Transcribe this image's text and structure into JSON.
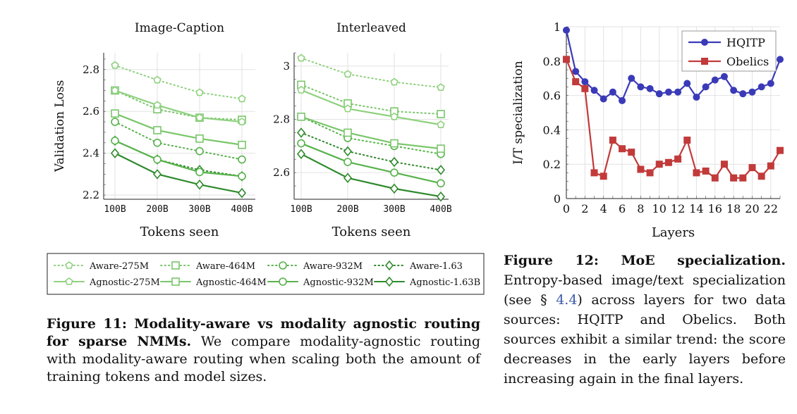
{
  "chart_data": [
    {
      "type": "line",
      "title": "Image-Caption",
      "xlabel": "Tokens seen",
      "ylabel": "Validation Loss",
      "categories": [
        "100B",
        "200B",
        "300B",
        "400B"
      ],
      "ylim": [
        2.18,
        2.88
      ],
      "yticks": [
        "2.2",
        "2.4",
        "2.6",
        "2.8"
      ],
      "ytick_values": [
        2.2,
        2.4,
        2.6,
        2.8
      ],
      "grid": true,
      "series": [
        {
          "name": "Aware-275M",
          "values": [
            2.82,
            2.75,
            2.69,
            2.66
          ]
        },
        {
          "name": "Aware-464M",
          "values": [
            2.7,
            2.61,
            2.57,
            2.56
          ]
        },
        {
          "name": "Aware-932M",
          "values": [
            2.55,
            2.45,
            2.41,
            2.37
          ]
        },
        {
          "name": "Aware-1.63",
          "values": [
            2.46,
            2.37,
            2.32,
            2.29
          ]
        },
        {
          "name": "Agnostic-275M",
          "values": [
            2.7,
            2.63,
            2.57,
            2.55
          ]
        },
        {
          "name": "Agnostic-464M",
          "values": [
            2.59,
            2.51,
            2.47,
            2.44
          ]
        },
        {
          "name": "Agnostic-932M",
          "values": [
            2.46,
            2.37,
            2.31,
            2.29
          ]
        },
        {
          "name": "Agnostic-1.63B",
          "values": [
            2.4,
            2.3,
            2.25,
            2.21
          ]
        }
      ]
    },
    {
      "type": "line",
      "title": "Interleaved",
      "xlabel": "Tokens seen",
      "ylabel": "",
      "categories": [
        "100B",
        "200B",
        "300B",
        "400B"
      ],
      "ylim": [
        2.5,
        3.05
      ],
      "yticks": [
        "2.6",
        "2.8",
        "3"
      ],
      "ytick_values": [
        2.6,
        2.8,
        3.0
      ],
      "grid": true,
      "series": [
        {
          "name": "Aware-275M",
          "values": [
            3.03,
            2.97,
            2.94,
            2.92
          ]
        },
        {
          "name": "Aware-464M",
          "values": [
            2.93,
            2.86,
            2.83,
            2.82
          ]
        },
        {
          "name": "Aware-932M",
          "values": [
            2.81,
            2.73,
            2.7,
            2.67
          ]
        },
        {
          "name": "Aware-1.63",
          "values": [
            2.75,
            2.68,
            2.64,
            2.61
          ]
        },
        {
          "name": "Agnostic-275M",
          "values": [
            2.91,
            2.84,
            2.81,
            2.78
          ]
        },
        {
          "name": "Agnostic-464M",
          "values": [
            2.81,
            2.75,
            2.71,
            2.69
          ]
        },
        {
          "name": "Agnostic-932M",
          "values": [
            2.71,
            2.64,
            2.6,
            2.56
          ]
        },
        {
          "name": "Agnostic-1.63B",
          "values": [
            2.67,
            2.58,
            2.54,
            2.51
          ]
        }
      ]
    },
    {
      "type": "line",
      "title": "",
      "xlabel": "Layers",
      "ylabel": "I/T specialization",
      "x": [
        0,
        1,
        2,
        3,
        4,
        5,
        6,
        7,
        8,
        9,
        10,
        11,
        12,
        13,
        14,
        15,
        16,
        17,
        18,
        19,
        20,
        21,
        22,
        23
      ],
      "xticks": [
        "0",
        "2",
        "4",
        "6",
        "8",
        "10",
        "12",
        "14",
        "16",
        "18",
        "20",
        "22"
      ],
      "xtick_values": [
        0,
        2,
        4,
        6,
        8,
        10,
        12,
        14,
        16,
        18,
        20,
        22
      ],
      "xlim": [
        0,
        23
      ],
      "ylim": [
        0,
        1
      ],
      "yticks": [
        "0",
        "0.2",
        "0.4",
        "0.6",
        "0.8",
        "1"
      ],
      "ytick_values": [
        0,
        0.2,
        0.4,
        0.6,
        0.8,
        1.0
      ],
      "grid": true,
      "legend_position": "top-right",
      "series": [
        {
          "name": "HQITP",
          "color": "#3a3ab8",
          "values": [
            0.98,
            0.74,
            0.68,
            0.63,
            0.58,
            0.62,
            0.57,
            0.7,
            0.65,
            0.64,
            0.61,
            0.62,
            0.62,
            0.67,
            0.59,
            0.65,
            0.69,
            0.71,
            0.63,
            0.61,
            0.62,
            0.65,
            0.67,
            0.81
          ]
        },
        {
          "name": "Obelics",
          "color": "#c23a3a",
          "values": [
            0.81,
            0.68,
            0.64,
            0.15,
            0.13,
            0.34,
            0.29,
            0.27,
            0.17,
            0.15,
            0.2,
            0.21,
            0.23,
            0.34,
            0.15,
            0.16,
            0.12,
            0.2,
            0.12,
            0.12,
            0.18,
            0.13,
            0.19,
            0.28
          ]
        }
      ]
    }
  ],
  "legend11": [
    {
      "label": "Aware-275M",
      "style": "aware",
      "marker": "pentagon",
      "shade": "#8fd17f"
    },
    {
      "label": "Aware-464M",
      "style": "aware",
      "marker": "square",
      "shade": "#79c66a"
    },
    {
      "label": "Aware-932M",
      "style": "aware",
      "marker": "circle",
      "shade": "#58b24c"
    },
    {
      "label": "Aware-1.63",
      "style": "aware",
      "marker": "diamond",
      "shade": "#2f8a2c"
    },
    {
      "label": "Agnostic-275M",
      "style": "agnostic",
      "marker": "pentagon",
      "shade": "#8fd17f"
    },
    {
      "label": "Agnostic-464M",
      "style": "agnostic",
      "marker": "square",
      "shade": "#79c66a"
    },
    {
      "label": "Agnostic-932M",
      "style": "agnostic",
      "marker": "circle",
      "shade": "#58b24c"
    },
    {
      "label": "Agnostic-1.63B",
      "style": "agnostic",
      "marker": "diamond",
      "shade": "#2f8a2c"
    }
  ],
  "captions": {
    "fig11_label": "Figure 11: Modality-aware vs modality agnostic routing for sparse NMMs.",
    "fig11_text": "We compare modality-agnostic routing with modality-aware routing when scaling both the amount of training tokens and model sizes.",
    "fig12_label": "Figure 12: MoE specialization.",
    "fig12_text_a": "Entropy-based image/text specialization (see §",
    "fig12_ref": "4.4",
    "fig12_text_b": ") across layers for two data sources: HQITP and Obelics. Both sources exhibit a similar trend: the score decreases in the early layers before increasing again in the final layers."
  }
}
